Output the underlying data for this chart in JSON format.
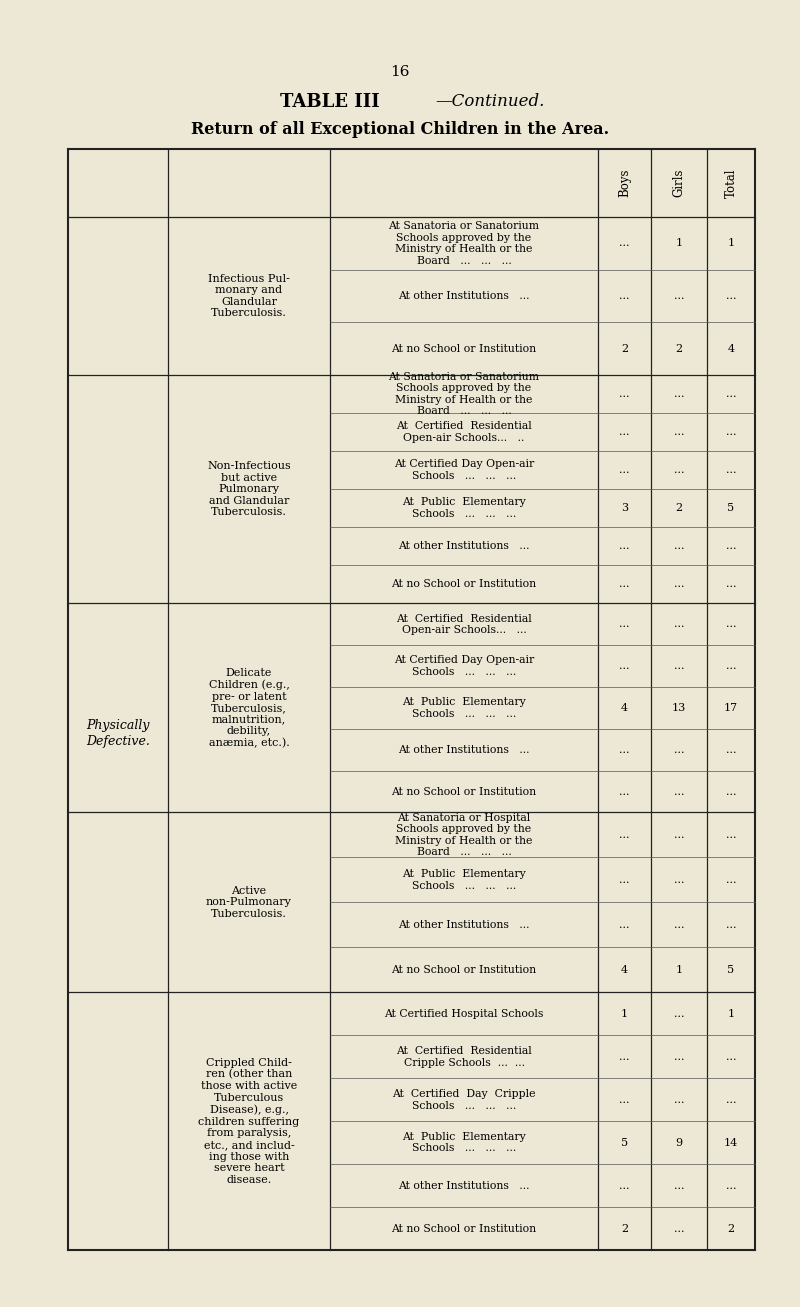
{
  "page_number": "16",
  "title_bold": "TABLE III",
  "title_italic": "—Continued.",
  "subtitle": "Return of all Exceptional Children in the Area.",
  "bg_color": "#ede8d5",
  "col_headers": [
    "Boys",
    "Girls",
    "Total"
  ],
  "main_category": "Physically\nDefective.",
  "sections": [
    {
      "sub_category": "Infectious Pul-\nmonary and\nGlandular\nTuberculosis.",
      "rows": [
        {
          "label": "At Sanatoria or Sanatorium\nSchools approved by the\nMinistry of Health or the\nBoard   ...   ...   ...",
          "boys": "...",
          "girls": "1",
          "total": "1"
        },
        {
          "label": "At other Institutions   ...",
          "boys": "...",
          "girls": "...",
          "total": "..."
        },
        {
          "label": "At no School or Institution",
          "boys": "2",
          "girls": "2",
          "total": "4"
        }
      ]
    },
    {
      "sub_category": "Non-Infectious\nbut active\nPulmonary\nand Glandular\nTuberculosis.",
      "rows": [
        {
          "label": "At Sanatoria or Sanatorium\nSchools approved by the\nMinistry of Health or the\nBoard   ...   ...   ...",
          "boys": "...",
          "girls": "...",
          "total": "..."
        },
        {
          "label": "At  Certified  Residential\nOpen-air Schools...   ..",
          "boys": "...",
          "girls": "...",
          "total": "..."
        },
        {
          "label": "At Certified Day Open-air\nSchools   ...   ...   ...",
          "boys": "...",
          "girls": "...",
          "total": "..."
        },
        {
          "label": "At  Public  Elementary\nSchools   ...   ...   ...",
          "boys": "3",
          "girls": "2",
          "total": "5"
        },
        {
          "label": "At other Institutions   ...",
          "boys": "...",
          "girls": "...",
          "total": "..."
        },
        {
          "label": "At no School or Institution",
          "boys": "...",
          "girls": "...",
          "total": "..."
        }
      ]
    },
    {
      "sub_category": "Delicate\nChildren (e.g.,\npre- or latent\nTuberculosis,\nmalnutrition,\ndebility,\nanæmia, etc.).",
      "rows": [
        {
          "label": "At  Certified  Residential\nOpen-air Schools...   ...",
          "boys": "...",
          "girls": "...",
          "total": "..."
        },
        {
          "label": "At Certified Day Open-air\nSchools   ...   ...   ...",
          "boys": "...",
          "girls": "...",
          "total": "..."
        },
        {
          "label": "At  Public  Elementary\nSchools   ...   ...   ...",
          "boys": "4",
          "girls": "13",
          "total": "17"
        },
        {
          "label": "At other Institutions   ...",
          "boys": "...",
          "girls": "...",
          "total": "..."
        },
        {
          "label": "At no School or Institution",
          "boys": "...",
          "girls": "...",
          "total": "..."
        }
      ]
    },
    {
      "sub_category": "Active\nnon-Pulmonary\nTuberculosis.",
      "rows": [
        {
          "label": "At Sanatoria or Hospital\nSchools approved by the\nMinistry of Health or the\nBoard   ...   ...   ...",
          "boys": "...",
          "girls": "...",
          "total": "..."
        },
        {
          "label": "At  Public  Elementary\nSchools   ...   ...   ...",
          "boys": "...",
          "girls": "...",
          "total": "..."
        },
        {
          "label": "At other Institutions   ...",
          "boys": "...",
          "girls": "...",
          "total": "..."
        },
        {
          "label": "At no School or Institution",
          "boys": "4",
          "girls": "1",
          "total": "5"
        }
      ]
    },
    {
      "sub_category": "Crippled Child-\nren (other than\nthose with active\nTuberculous\nDisease), e.g.,\nchildren suffering\nfrom paralysis,\netc., and includ-\ning those with\nsevere heart\ndisease.",
      "rows": [
        {
          "label": "At Certified Hospital Schools",
          "boys": "1",
          "girls": "...",
          "total": "1"
        },
        {
          "label": "At  Certified  Residential\nCripple Schools  ...  ...",
          "boys": "...",
          "girls": "...",
          "total": "..."
        },
        {
          "label": "At  Certified  Day  Cripple\nSchools   ...   ...   ...",
          "boys": "...",
          "girls": "...",
          "total": "..."
        },
        {
          "label": "At  Public  Elementary\nSchools   ...   ...   ...",
          "boys": "5",
          "girls": "9",
          "total": "14"
        },
        {
          "label": "At other Institutions   ...",
          "boys": "...",
          "girls": "...",
          "total": "..."
        },
        {
          "label": "At no School or Institution",
          "boys": "2",
          "girls": "...",
          "total": "2"
        }
      ]
    }
  ]
}
